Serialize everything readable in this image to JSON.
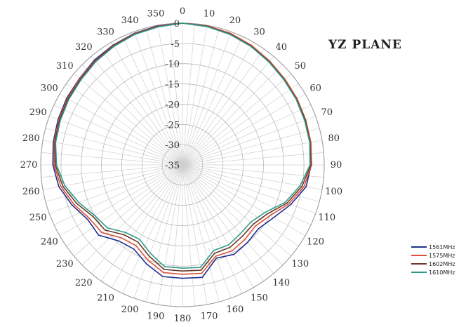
{
  "chart_data": {
    "type": "polar",
    "title": "YZ PLANE",
    "angle_ticks": [
      "0",
      "10",
      "20",
      "30",
      "40",
      "50",
      "60",
      "70",
      "80",
      "90",
      "100",
      "110",
      "120",
      "130",
      "140",
      "150",
      "160",
      "170",
      "180",
      "190",
      "200",
      "210",
      "220",
      "230",
      "240",
      "250",
      "260",
      "270",
      "280",
      "290",
      "300",
      "310",
      "320",
      "330",
      "340",
      "350"
    ],
    "radial_ticks": [
      "0",
      "-5",
      "-10",
      "-15",
      "-20",
      "-25",
      "-30",
      "-35"
    ],
    "rlim": [
      -35,
      0
    ],
    "grid": true,
    "legend_position": "bottom-right",
    "angles": [
      0,
      10,
      20,
      30,
      40,
      50,
      60,
      70,
      80,
      90,
      100,
      110,
      120,
      130,
      140,
      150,
      160,
      170,
      180,
      190,
      200,
      210,
      220,
      230,
      240,
      250,
      260,
      270,
      280,
      290,
      300,
      310,
      320,
      330,
      340,
      350
    ],
    "series": [
      {
        "name": "1561MHz",
        "color": "#1f2f8f",
        "values": [
          0,
          -0.3,
          -0.7,
          -1.2,
          -1.8,
          -2.2,
          -2.5,
          -2.8,
          -3.0,
          -3.2,
          -4.0,
          -6.5,
          -9.0,
          -10.5,
          -10.0,
          -9.5,
          -10.5,
          -6.8,
          -7.0,
          -7.0,
          -9.0,
          -11.0,
          -10.5,
          -8.0,
          -8.0,
          -6.0,
          -4.0,
          -3.0,
          -2.6,
          -2.3,
          -2.0,
          -1.8,
          -1.2,
          -0.8,
          -0.4,
          -0.1
        ]
      },
      {
        "name": "1575MHz",
        "color": "#d9533a",
        "values": [
          0,
          -0.1,
          -0.4,
          -0.9,
          -1.5,
          -2.0,
          -2.3,
          -2.6,
          -2.8,
          -3.1,
          -4.5,
          -7.0,
          -10.0,
          -11.5,
          -11.0,
          -10.5,
          -11.0,
          -7.8,
          -8.0,
          -8.0,
          -10.0,
          -12.0,
          -11.5,
          -9.0,
          -8.5,
          -6.5,
          -4.5,
          -3.3,
          -2.8,
          -2.5,
          -2.2,
          -1.9,
          -1.4,
          -0.9,
          -0.5,
          -0.2
        ]
      },
      {
        "name": "1602MHz",
        "color": "#6b3a2a",
        "values": [
          0,
          -0.2,
          -0.6,
          -1.1,
          -1.7,
          -2.2,
          -2.5,
          -2.7,
          -3.0,
          -3.3,
          -5.0,
          -7.5,
          -10.8,
          -12.2,
          -12.0,
          -11.5,
          -11.8,
          -8.6,
          -8.8,
          -8.8,
          -11.0,
          -13.0,
          -12.5,
          -10.0,
          -9.5,
          -7.2,
          -5.0,
          -3.6,
          -3.0,
          -2.7,
          -2.4,
          -2.1,
          -1.5,
          -1.0,
          -0.6,
          -0.3
        ]
      },
      {
        "name": "1610MHz",
        "color": "#2f9a8a",
        "values": [
          0,
          -0.3,
          -0.7,
          -1.2,
          -1.8,
          -2.3,
          -2.6,
          -2.9,
          -3.1,
          -3.5,
          -5.5,
          -8.0,
          -11.5,
          -13.0,
          -12.8,
          -12.2,
          -12.5,
          -9.3,
          -9.5,
          -9.5,
          -11.8,
          -13.8,
          -13.2,
          -10.8,
          -10.0,
          -7.8,
          -5.5,
          -3.9,
          -3.2,
          -2.9,
          -2.6,
          -2.3,
          -1.7,
          -1.2,
          -0.7,
          -0.4
        ]
      }
    ]
  }
}
